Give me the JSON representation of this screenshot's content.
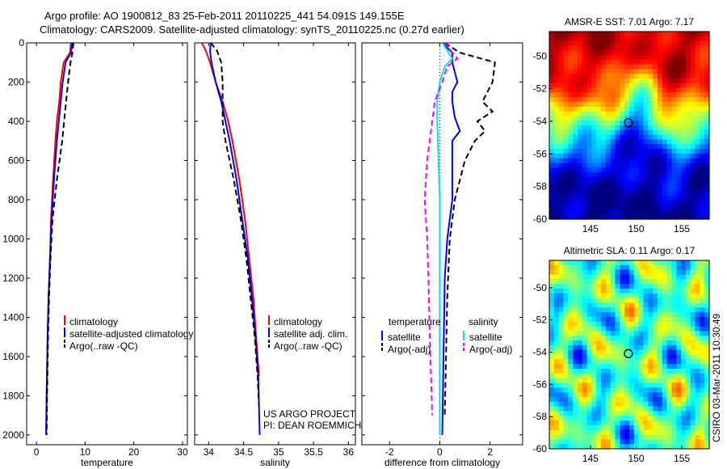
{
  "header": {
    "line1": "Argo profile: AO 1900812_83 25-Feb-2011 20110225_441 54.091S 149.155E",
    "line2": "Climatology: CARS2009. Satellite-adjusted climatology: synTS_20110225.nc (0.27d earlier)"
  },
  "credit": "CSIRO 03-Mar-2011 10:30:49",
  "chart_data": [
    {
      "type": "line",
      "xlabel": "temperature",
      "ylabel": "",
      "xlim": [
        -2,
        31
      ],
      "ylim": [
        0,
        2050
      ],
      "y_reversed": true,
      "xticks": [
        0,
        10,
        20,
        30
      ],
      "yticks": [
        0,
        200,
        400,
        600,
        800,
        1000,
        1200,
        1400,
        1600,
        1800,
        2000
      ],
      "legend": {
        "position": "lower-right",
        "entries": [
          "climatology",
          "satellite-adjusted climatology",
          "Argo(..raw -QC)"
        ]
      },
      "series": [
        {
          "name": "climatology",
          "color": "#ff0000",
          "style": "solid",
          "x": [
            7.1,
            6.9,
            5.6,
            5.0,
            4.7,
            4.2,
            3.9,
            3.4,
            3.0,
            2.8,
            2.5,
            2.3,
            2.1,
            2.0
          ],
          "y": [
            0,
            50,
            100,
            200,
            300,
            400,
            500,
            700,
            900,
            1100,
            1300,
            1500,
            1800,
            2000
          ]
        },
        {
          "name": "satellite-adjusted climatology",
          "color": "#0000ff",
          "style": "solid",
          "x": [
            7.3,
            7.1,
            6.0,
            5.4,
            5.0,
            4.6,
            4.2,
            3.6,
            3.1,
            2.8,
            2.5,
            2.3,
            2.1,
            2.0
          ],
          "y": [
            0,
            50,
            100,
            200,
            300,
            400,
            500,
            700,
            900,
            1100,
            1300,
            1500,
            1800,
            2000
          ]
        },
        {
          "name": "Argo(..raw -QC)",
          "color": "#000000",
          "style": "dashed",
          "x": [
            7.6,
            7.4,
            7.0,
            6.5,
            6.1,
            5.7,
            5.3,
            4.2,
            3.3,
            2.9,
            2.6,
            2.4,
            2.2,
            2.1
          ],
          "y": [
            0,
            50,
            100,
            200,
            300,
            400,
            500,
            700,
            900,
            1100,
            1300,
            1500,
            1800,
            2000
          ]
        }
      ]
    },
    {
      "type": "line",
      "xlabel": "salinity",
      "ylabel": "",
      "xlim": [
        33.8,
        36.1
      ],
      "ylim": [
        0,
        2050
      ],
      "y_reversed": true,
      "xticks": [
        34,
        34.5,
        35,
        35.5,
        36
      ],
      "legend": {
        "position": "lower-right",
        "entries": [
          "climatology",
          "satellite adj. clim.",
          "Argo(..raw -QC)"
        ]
      },
      "annotations": [
        "US ARGO PROJECT",
        "PI: DEAN ROEMMICH"
      ],
      "series": [
        {
          "name": "climatology",
          "color": "#ff0000",
          "style": "solid",
          "x": [
            33.9,
            33.96,
            34.02,
            34.1,
            34.2,
            34.28,
            34.34,
            34.44,
            34.52,
            34.58,
            34.64,
            34.68,
            34.72
          ],
          "y": [
            0,
            40,
            100,
            200,
            300,
            400,
            500,
            700,
            900,
            1100,
            1300,
            1500,
            1700
          ]
        },
        {
          "name": "satellite adj. clim.",
          "color": "#0000ff",
          "style": "solid",
          "x": [
            34.03,
            34.02,
            34.04,
            34.1,
            34.18,
            34.24,
            34.3,
            34.4,
            34.48,
            34.56,
            34.62,
            34.67,
            34.71,
            34.73
          ],
          "y": [
            0,
            40,
            100,
            200,
            300,
            400,
            500,
            700,
            900,
            1100,
            1300,
            1500,
            1700,
            2000
          ]
        },
        {
          "name": "Argo(..raw -QC)",
          "color": "#000000",
          "style": "dashed",
          "x": [
            34.03,
            34.12,
            34.18,
            34.2,
            34.2,
            34.2,
            34.24,
            34.36,
            34.46,
            34.54,
            34.6,
            34.66,
            34.7,
            34.72
          ],
          "y": [
            0,
            40,
            100,
            200,
            300,
            400,
            500,
            700,
            900,
            1100,
            1300,
            1500,
            1700,
            1850
          ]
        }
      ]
    },
    {
      "type": "line",
      "xlabel": "difference from climatology",
      "ylabel": "",
      "xlim": [
        -3.1,
        3.3
      ],
      "ylim": [
        0,
        2050
      ],
      "y_reversed": true,
      "xticks": [
        -2,
        0,
        2
      ],
      "legend": {
        "position": "lower-right",
        "groups": [
          {
            "title": "temperature",
            "entries": [
              "satellite",
              "Argo(-adj)"
            ]
          },
          {
            "title": "salinity",
            "entries": [
              "satellite",
              "Argo(-adj)"
            ]
          }
        ]
      },
      "series": [
        {
          "name": "satellite",
          "group": "temperature",
          "color": "#0000ff",
          "style": "solid",
          "x": [
            0.1,
            0.5,
            0.5,
            0.7,
            0.5,
            0.5,
            0.6,
            0.8,
            0.5,
            0.5,
            0.5,
            0.3,
            0.2,
            0.1
          ],
          "y": [
            0,
            50,
            100,
            200,
            250,
            300,
            380,
            450,
            500,
            600,
            800,
            1000,
            1200,
            2000
          ]
        },
        {
          "name": "Argo(-adj)",
          "group": "temperature",
          "color": "#000000",
          "style": "dashed",
          "x": [
            0.2,
            0.8,
            2.2,
            2.1,
            1.7,
            2.1,
            1.5,
            1.8,
            1.4,
            1.0,
            0.6,
            0.4,
            0.3,
            0.2
          ],
          "y": [
            0,
            50,
            100,
            200,
            300,
            350,
            400,
            450,
            500,
            600,
            800,
            1000,
            1300,
            1900
          ]
        },
        {
          "name": "satellite",
          "group": "salinity",
          "color": "#00e5e5",
          "style": "solid",
          "x": [
            0.1,
            0.5,
            0.2,
            0.0,
            -0.1,
            -0.1,
            -0.05,
            0.0,
            0.0,
            0.0,
            0.0,
            0.0
          ],
          "y": [
            0,
            80,
            120,
            200,
            300,
            400,
            600,
            800,
            1000,
            1200,
            1600,
            2000
          ]
        },
        {
          "name": "Argo(-adj)",
          "group": "salinity",
          "color": "#ff00ff",
          "style": "dashed",
          "x": [
            0.2,
            0.7,
            0.3,
            0.1,
            -0.2,
            -0.3,
            -0.5,
            -0.6,
            -0.5,
            -0.45,
            -0.4,
            -0.3
          ],
          "y": [
            0,
            80,
            120,
            200,
            300,
            400,
            600,
            800,
            1000,
            1200,
            1500,
            1900
          ]
        }
      ]
    },
    {
      "type": "heatmap",
      "title_prefix": "AMSR-E SST:",
      "title_value": "7.01",
      "title_suffix_label": "Argo:",
      "title_suffix_value": "7.17",
      "xlim": [
        140.5,
        158
      ],
      "ylim": [
        -60,
        -48.5
      ],
      "xticks": [
        145,
        150,
        155
      ],
      "yticks": [
        -50,
        -52,
        -54,
        -56,
        -58,
        -60
      ],
      "marker": {
        "lon": 149.155,
        "lat": -54.091
      },
      "colormap": "jet"
    },
    {
      "type": "heatmap",
      "title_prefix": "Altimetric SLA:",
      "title_value": "0.11",
      "title_suffix_label": "Argo:",
      "title_suffix_value": "0.17",
      "xlim": [
        140.5,
        158
      ],
      "ylim": [
        -60,
        -48.3
      ],
      "xticks": [
        145,
        150,
        155
      ],
      "yticks": [
        -50,
        -52,
        -54,
        -56,
        -58,
        -60
      ],
      "marker": {
        "lon": 149.155,
        "lat": -54.091
      },
      "colormap": "jet"
    }
  ]
}
